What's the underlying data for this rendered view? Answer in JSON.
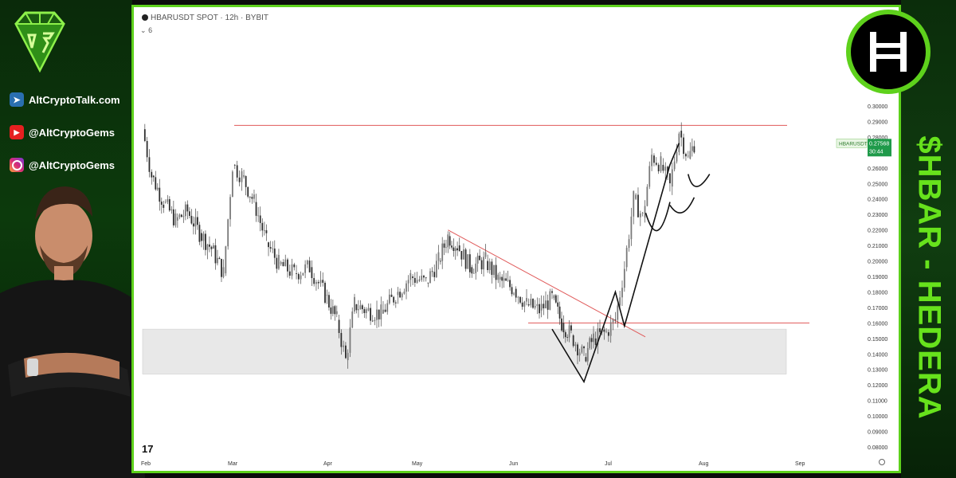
{
  "brand": {
    "website": "AltCryptoTalk.com",
    "youtube": "@AltCryptoGems",
    "instagram": "@AltCryptoGems"
  },
  "side_title": "$HBAR - HEDERA",
  "chart_header": {
    "title": "HBARUSDT SPOT · 12h · BYBIT",
    "indicator_count": "6"
  },
  "price_tag": {
    "symbol": "HBARUSDT",
    "price": "0.27568",
    "countdown": "30:44"
  },
  "colors": {
    "frame": "#5ed11c",
    "resistance": "#e05a5a",
    "support_zone": "#e8e8e8",
    "candle": "#4a4a4a",
    "pattern": "#111111"
  },
  "chart_data": {
    "type": "candlestick",
    "title": "HBARUSDT SPOT · 12h · BYBIT",
    "y_ticks": [
      "0.30000",
      "0.29000",
      "0.28000",
      "0.27000",
      "0.26000",
      "0.25000",
      "0.24000",
      "0.23000",
      "0.22000",
      "0.21000",
      "0.20000",
      "0.19000",
      "0.18000",
      "0.17000",
      "0.16000",
      "0.15000",
      "0.14000",
      "0.13000",
      "0.12000",
      "0.11000",
      "0.10000",
      "0.09000",
      "0.08000"
    ],
    "x_ticks": [
      "Feb",
      "Mar",
      "Apr",
      "May",
      "Jun",
      "Jul",
      "Aug",
      "Sep"
    ],
    "ylim": [
      0.075,
      0.305
    ],
    "close_series": [
      [
        "Feb 1",
        0.285
      ],
      [
        "Feb 4",
        0.255
      ],
      [
        "Feb 8",
        0.238
      ],
      [
        "Feb 12",
        0.226
      ],
      [
        "Feb 16",
        0.232
      ],
      [
        "Feb 20",
        0.218
      ],
      [
        "Feb 24",
        0.208
      ],
      [
        "Feb 28",
        0.192
      ],
      [
        "Mar 2",
        0.262
      ],
      [
        "Mar 5",
        0.255
      ],
      [
        "Mar 9",
        0.238
      ],
      [
        "Mar 13",
        0.212
      ],
      [
        "Mar 17",
        0.198
      ],
      [
        "Mar 22",
        0.192
      ],
      [
        "Mar 27",
        0.196
      ],
      [
        "Apr 1",
        0.178
      ],
      [
        "Apr 5",
        0.162
      ],
      [
        "Apr 8",
        0.136
      ],
      [
        "Apr 11",
        0.172
      ],
      [
        "Apr 15",
        0.168
      ],
      [
        "Apr 20",
        0.166
      ],
      [
        "Apr 25",
        0.178
      ],
      [
        "Apr 30",
        0.19
      ],
      [
        "May 5",
        0.186
      ],
      [
        "May 9",
        0.2
      ],
      [
        "May 12",
        0.216
      ],
      [
        "May 15",
        0.21
      ],
      [
        "May 19",
        0.196
      ],
      [
        "May 24",
        0.2
      ],
      [
        "May 28",
        0.188
      ],
      [
        "Jun 2",
        0.182
      ],
      [
        "Jun 6",
        0.172
      ],
      [
        "Jun 10",
        0.168
      ],
      [
        "Jun 14",
        0.176
      ],
      [
        "Jun 17",
        0.16
      ],
      [
        "Jun 20",
        0.152
      ],
      [
        "Jun 24",
        0.138
      ],
      [
        "Jun 27",
        0.15
      ],
      [
        "Jul 1",
        0.154
      ],
      [
        "Jul 4",
        0.162
      ],
      [
        "Jul 7",
        0.196
      ],
      [
        "Jul 10",
        0.24
      ],
      [
        "Jul 13",
        0.228
      ],
      [
        "Jul 16",
        0.268
      ],
      [
        "Jul 19",
        0.262
      ],
      [
        "Jul 22",
        0.248
      ],
      [
        "Jul 25",
        0.284
      ],
      [
        "Jul 28",
        0.266
      ],
      [
        "Jul 30",
        0.2757
      ]
    ],
    "resistance_level": 0.2875,
    "breakout_level": 0.16,
    "support_zone": [
      0.127,
      0.156
    ],
    "trendline": [
      [
        "May 12",
        0.22
      ],
      [
        "Jul 6",
        0.155
      ]
    ],
    "pattern": "double bottom / cup and handle",
    "grid": false
  }
}
